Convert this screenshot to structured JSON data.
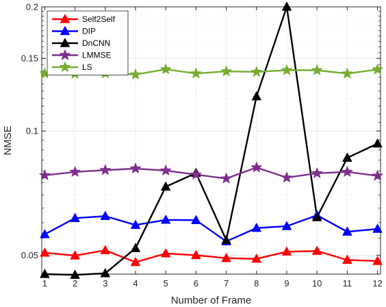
{
  "chart_data": {
    "type": "line",
    "xlabel": "Number of Frame",
    "ylabel": "NMSE",
    "x": [
      1,
      2,
      3,
      4,
      5,
      6,
      7,
      8,
      9,
      10,
      11,
      12
    ],
    "xlim": [
      0.9,
      12.1
    ],
    "ylim": [
      0.045,
      0.2
    ],
    "y_scale": "log",
    "x_ticks": [
      "1",
      "2",
      "3",
      "4",
      "5",
      "6",
      "7",
      "8",
      "9",
      "10",
      "11",
      "12"
    ],
    "y_ticks": [
      {
        "value": 0.05,
        "label": "0.05"
      },
      {
        "value": 0.1,
        "label": "0.1"
      },
      {
        "value": 0.15,
        "label": "0.15"
      },
      {
        "value": 0.2,
        "label": "0.2"
      }
    ],
    "grid": true,
    "legend_position": "top-left",
    "series": [
      {
        "name": "Self2Self",
        "color": "#ff0000",
        "marker": "triangle",
        "values": [
          0.0507,
          0.0499,
          0.0514,
          0.0481,
          0.0505,
          0.05,
          0.0492,
          0.049,
          0.051,
          0.0512,
          0.0487,
          0.0484
        ]
      },
      {
        "name": "DIP",
        "color": "#0000ff",
        "marker": "triangle",
        "values": [
          0.0562,
          0.0615,
          0.0622,
          0.0592,
          0.0609,
          0.0608,
          0.054,
          0.0582,
          0.0588,
          0.0625,
          0.057,
          0.0579
        ]
      },
      {
        "name": "DnCNN",
        "color": "#000000",
        "marker": "triangle",
        "values": [
          0.045,
          0.0448,
          0.0452,
          0.052,
          0.0733,
          0.0791,
          0.0544,
          0.1213,
          0.2,
          0.0618,
          0.0861,
          0.0932
        ]
      },
      {
        "name": "LMMSE",
        "color": "#7e2f8e",
        "marker": "star",
        "values": [
          0.0781,
          0.0796,
          0.0804,
          0.0811,
          0.0802,
          0.0784,
          0.0767,
          0.0816,
          0.0771,
          0.079,
          0.0796,
          0.0779
        ]
      },
      {
        "name": "LS",
        "color": "#77ac30",
        "marker": "star",
        "values": [
          0.1379,
          0.1376,
          0.138,
          0.1371,
          0.1411,
          0.1379,
          0.1395,
          0.1391,
          0.1404,
          0.1404,
          0.1378,
          0.141
        ]
      }
    ]
  }
}
